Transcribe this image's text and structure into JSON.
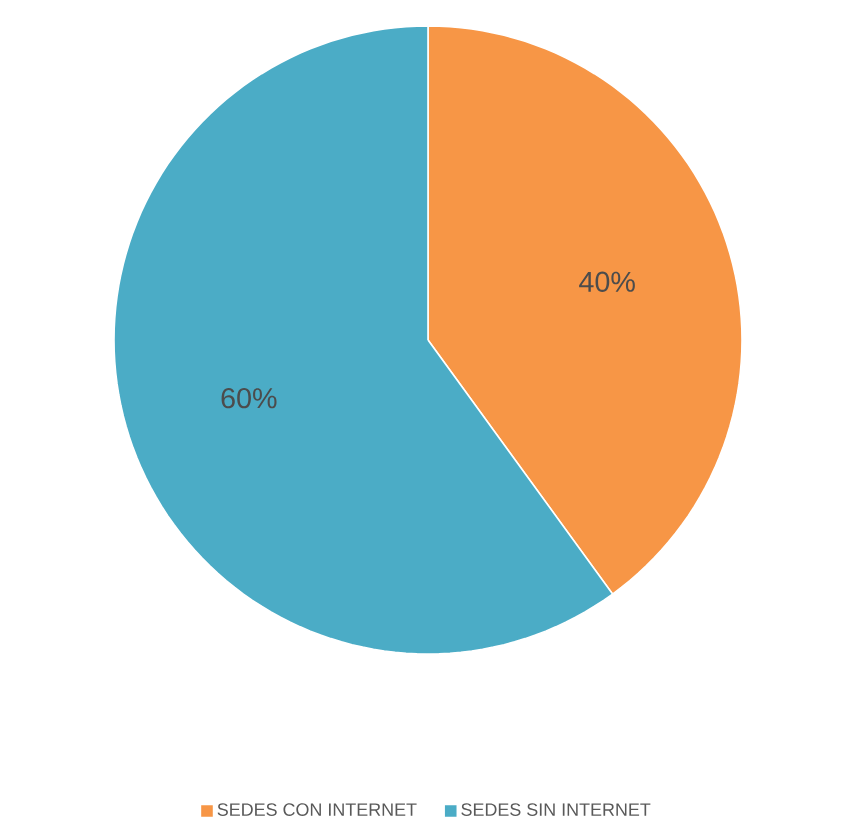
{
  "chart_data": {
    "type": "pie",
    "categories": [
      "SEDES CON INTERNET",
      "SEDES SIN INTERNET"
    ],
    "values": [
      40,
      60
    ],
    "colors": [
      "#f79646",
      "#4bacc6"
    ],
    "value_labels": [
      "40%",
      "60%"
    ],
    "legend": "bottom"
  }
}
